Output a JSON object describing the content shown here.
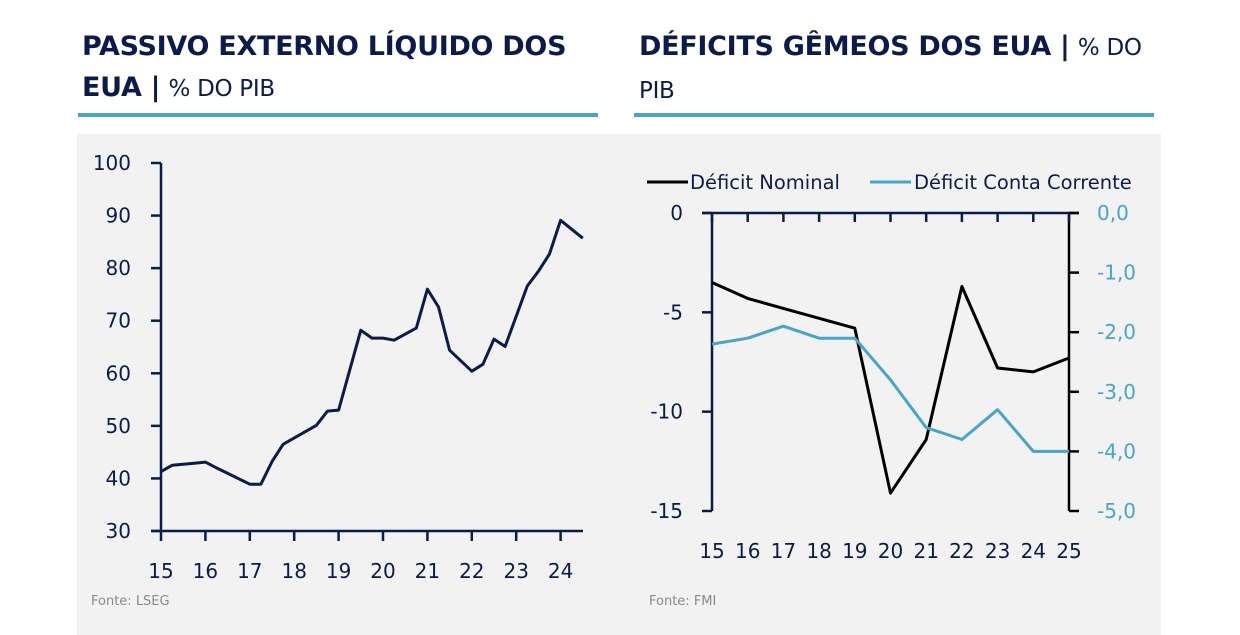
{
  "colors": {
    "navy": "#0d1b4a",
    "black": "#000000",
    "accent_blue": "#4aa3c8",
    "panel_bg": "#f2f2f2",
    "source_gray": "#8a8a8a"
  },
  "left_panel": {
    "title_bold": "PASSIVO EXTERNO LÍQUIDO DOS EUA |",
    "title_unit": "% DO PIB",
    "source": "Fonte: LSEG"
  },
  "right_panel": {
    "title_bold": "DÉFICITS GÊMEOS DOS EUA |",
    "title_unit": "% DO PIB",
    "source": "Fonte: FMI"
  },
  "chart_data": [
    {
      "type": "line",
      "title": "PASSIVO EXTERNO LÍQUIDO DOS EUA | % DO PIB",
      "xlabel": "",
      "ylabel": "",
      "xlim": [
        15,
        24.5
      ],
      "ylim": [
        30,
        100
      ],
      "x_ticks": [
        15,
        16,
        17,
        18,
        19,
        20,
        21,
        22,
        23,
        24
      ],
      "x_tick_labels": [
        "15",
        "16",
        "17",
        "18",
        "19",
        "20",
        "21",
        "22",
        "23",
        "24"
      ],
      "y_ticks": [
        30,
        40,
        50,
        60,
        70,
        80,
        90,
        100
      ],
      "y_tick_labels": [
        "30",
        "40",
        "50",
        "60",
        "70",
        "80",
        "90",
        "100"
      ],
      "grid": false,
      "legend": "none",
      "source": "Fonte: LSEG",
      "series": [
        {
          "name": "Passivo externo líquido",
          "color": "#0d1b4a",
          "x": [
            15.0,
            15.25,
            15.75,
            16.0,
            16.25,
            17.0,
            17.25,
            17.5,
            17.75,
            18.5,
            18.75,
            19.0,
            19.5,
            19.75,
            20.0,
            20.25,
            20.75,
            21.0,
            21.25,
            21.5,
            22.0,
            22.25,
            22.5,
            22.75,
            23.25,
            23.5,
            23.75,
            24.0,
            24.5
          ],
          "values": [
            41.3,
            42.5,
            42.9,
            43.1,
            42.0,
            38.9,
            38.9,
            43.2,
            46.5,
            50.1,
            52.8,
            53.0,
            68.2,
            66.7,
            66.7,
            66.3,
            68.6,
            76.0,
            72.6,
            64.4,
            60.4,
            61.7,
            66.5,
            65.1,
            76.6,
            79.4,
            82.7,
            89.1,
            85.7
          ]
        }
      ]
    },
    {
      "type": "line",
      "title": "DÉFICITS GÊMEOS DOS EUA | % DO PIB",
      "xlabel": "",
      "ylabel": "",
      "categories": [
        "15",
        "16",
        "17",
        "18",
        "19",
        "20",
        "21",
        "22",
        "23",
        "24",
        "25"
      ],
      "ylim_left": [
        -15,
        0
      ],
      "ylim_right": [
        -5.0,
        0.0
      ],
      "y_ticks_left": [
        0,
        -5,
        -10,
        -15
      ],
      "y_tick_labels_left": [
        "0",
        "-5",
        "-10",
        "-15"
      ],
      "y_ticks_right": [
        0,
        -1,
        -2,
        -3,
        -4,
        -5
      ],
      "y_tick_labels_right": [
        "0,0",
        "-1,0",
        "-2,0",
        "-3,0",
        "-4,0",
        "-5,0"
      ],
      "grid": false,
      "legend": "top",
      "source": "Fonte: FMI",
      "series": [
        {
          "name": "Déficit Nominal",
          "axis": "left",
          "color": "#000000",
          "values": [
            -3.5,
            -4.3,
            -4.8,
            -5.3,
            -5.8,
            -14.1,
            -11.4,
            -3.7,
            -7.8,
            -8.0,
            -7.3
          ]
        },
        {
          "name": "Déficit Conta Corrente",
          "axis": "right",
          "color": "#4aa3c8",
          "values": [
            -2.2,
            -2.1,
            -1.9,
            -2.1,
            -2.1,
            -2.8,
            -3.6,
            -3.8,
            -3.3,
            -4.0,
            -4.0
          ]
        }
      ]
    }
  ]
}
